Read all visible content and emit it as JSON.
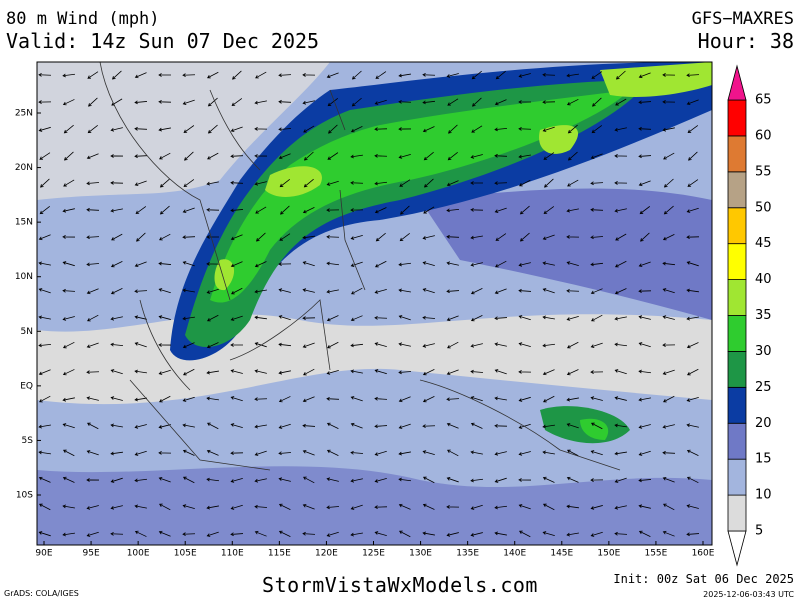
{
  "header": {
    "title": "80 m Wind (mph)",
    "valid": "Valid: 14z Sun 07 Dec 2025",
    "model": "GFS−MAXRES",
    "hour": "Hour: 38"
  },
  "map": {
    "lon_labels": [
      "90E",
      "95E",
      "100E",
      "105E",
      "110E",
      "115E",
      "120E",
      "125E",
      "130E",
      "135E",
      "140E",
      "145E",
      "150E",
      "155E",
      "160E"
    ],
    "lat_labels": [
      "25N",
      "20N",
      "15N",
      "10N",
      "5N",
      "EQ",
      "5S",
      "10S"
    ]
  },
  "colorbar": {
    "levels": [
      5,
      10,
      15,
      20,
      25,
      30,
      35,
      40,
      45,
      50,
      55,
      60,
      65
    ],
    "colors": [
      "#ffffff",
      "#dcdcdc",
      "#a3b5de",
      "#6f79c6",
      "#0b3ca3",
      "#1e9646",
      "#2fcc2f",
      "#a0e632",
      "#ffff00",
      "#ffc800",
      "#b6a286",
      "#de7a32",
      "#ff0000",
      "#f0148c"
    ]
  },
  "footer": {
    "credit": "GrADS: COLA/IGES",
    "site": "StormVistaWxModels.com",
    "init": "Init: 00z Sat 06 Dec 2025",
    "timestamp": "2025-12-06-03:43 UTC"
  }
}
